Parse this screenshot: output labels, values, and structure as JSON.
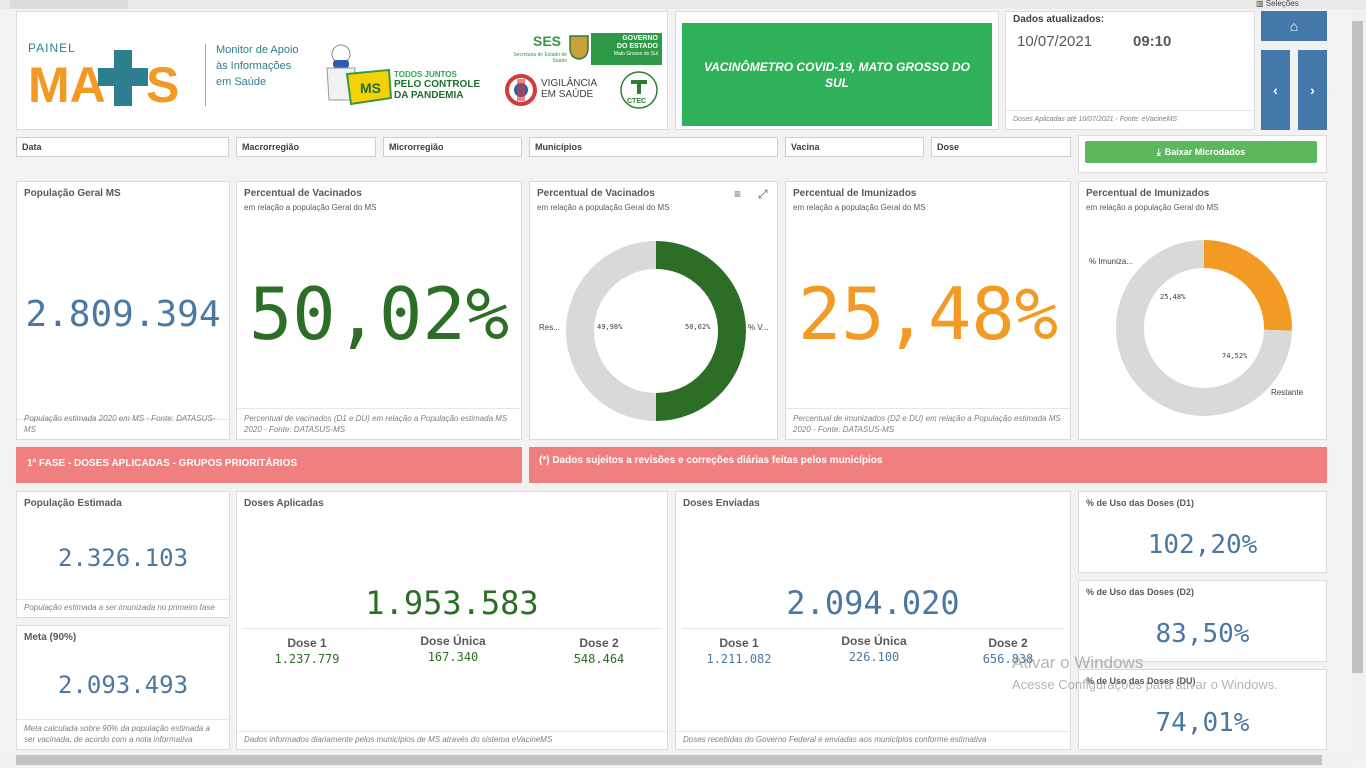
{
  "top_tab": "Seleções",
  "header": {
    "painel_prefix": "PAINEL",
    "logo_text": "MAIS",
    "monitor_text": "Monitor de Apoio às Informações em Saúde",
    "campaign_line1": "TODOS JUNTOS",
    "campaign_line2": "PELO CONTROLE",
    "campaign_line3": "DA PANDEMIA",
    "ms_badge": "MS",
    "ses_title": "SES",
    "ses_sub": "Secretaria de Estado de Saúde",
    "gov_line1": "GOVERNO",
    "gov_line2": "DO ESTADO",
    "gov_line3": "Mato Grosso do Sul",
    "vig_line1": "VIGILÂNCIA",
    "vig_line2": "EM SAÚDE",
    "ctec_label": "CTEC",
    "banner_title": "VACINÔMETRO COVID-19, MATO GROSSO DO SUL",
    "update_label": "Dados atualizados:",
    "update_date": "10/07/2021",
    "update_time": "09:10",
    "update_source": "Doses Aplicadas até 10/07/2021 - Fonte: eVacineMS"
  },
  "nav": {
    "home_icon": "home-icon",
    "prev_icon": "chevron-left-icon",
    "next_icon": "chevron-right-icon"
  },
  "filters": [
    "Data",
    "Macrorregião",
    "Microrregião",
    "Municípios",
    "Vacina",
    "Dose"
  ],
  "download_label": "Baixar Microdados",
  "kpi1": {
    "title": "População Geral MS",
    "value": "2.809.394",
    "foot": "População estimada 2020 em MS - Fonte: DATASUS-MS"
  },
  "kpi2": {
    "title": "Percentual de Vacinados",
    "sub": "em relação a população Geral do MS",
    "value": "50,02%",
    "foot": "Percentual de vacinados (D1 e DU) em relação a População estimada MS 2020 - Fonte: DATASUS-MS"
  },
  "donut1": {
    "title": "Percentual de Vacinados",
    "sub": "em relação a população Geral do MS",
    "label_left": "Res...",
    "label_right": "% V...",
    "pct_left": "49,98%",
    "pct_right": "50,02%"
  },
  "kpi3": {
    "title": "Percentual de Imunizados",
    "sub": "em relação a população Geral do MS",
    "value": "25,48%",
    "foot": "Percentual de imunizados (D2 e DU) em relação a População estimada MS 2020 - Fonte: DATASUS-MS"
  },
  "donut2": {
    "title": "Percentual de Imunizados",
    "sub": "em relação a população Geral do MS",
    "label_top": "% Imuniza...",
    "label_bottom": "Restante",
    "pct_orange": "25,48%",
    "pct_grey": "74,52%"
  },
  "chart_data": [
    {
      "type": "pie",
      "title": "Percentual de Vacinados",
      "categories": [
        "% V...",
        "Res..."
      ],
      "values": [
        50.02,
        49.98
      ],
      "colors": [
        "#2d6e26",
        "#d9d9d9"
      ]
    },
    {
      "type": "pie",
      "title": "Percentual de Imunizados",
      "categories": [
        "% Imuniza...",
        "Restante"
      ],
      "values": [
        25.48,
        74.52
      ],
      "colors": [
        "#f39a25",
        "#d9d9d9"
      ]
    }
  ],
  "section_banner_left": "1ª FASE - DOSES APLICADAS - GRUPOS PRIORITÁRIOS",
  "section_banner_right": "(*) Dados sujeitos a revisões e correções diárias feitas pelos municípios",
  "pop_estimada": {
    "title": "População Estimada",
    "value": "2.326.103",
    "foot": "População estimada a ser imunizada no primeiro fase"
  },
  "meta": {
    "title": "Meta (90%)",
    "value": "2.093.493",
    "foot": "Meta calculada sobre 90% da população estimada a ser vacinada, de acordo com a nota informativa"
  },
  "doses_aplicadas": {
    "title": "Doses Aplicadas",
    "value": "1.953.583",
    "d1_label": "Dose 1",
    "d1": "1.237.779",
    "du_label": "Dose Única",
    "du": "167.340",
    "d2_label": "Dose 2",
    "d2": "548.464",
    "foot": "Dados informados diariamente pelos municípios de MS através do sistema eVacineMS"
  },
  "doses_enviadas": {
    "title": "Doses Enviadas",
    "value": "2.094.020",
    "d1_label": "Dose 1",
    "d1": "1.211.082",
    "du_label": "Dose Única",
    "du": "226.100",
    "d2_label": "Dose 2",
    "d2": "656.838",
    "foot": "Doses recebidas do Governo Federal e enviadas aos municípios conforme estimativa"
  },
  "uso_d1": {
    "title": "% de Uso das Doses (D1)",
    "value": "102,20%"
  },
  "uso_d2": {
    "title": "% de Uso das Doses (D2)",
    "value": "83,50%"
  },
  "uso_du": {
    "title": "% de Uso das Doses (DU)",
    "value": "74,01%"
  },
  "watermark_line1": "Ativar o Windows",
  "watermark_line2": "Acesse Configurações para ativar o Windows.",
  "colors": {
    "blue": "#4a78a3",
    "green": "#2d6e26",
    "orange": "#f39a25",
    "banner_green": "#2fb15a",
    "banner_red": "#f08080",
    "nav_blue": "#4477aa"
  }
}
